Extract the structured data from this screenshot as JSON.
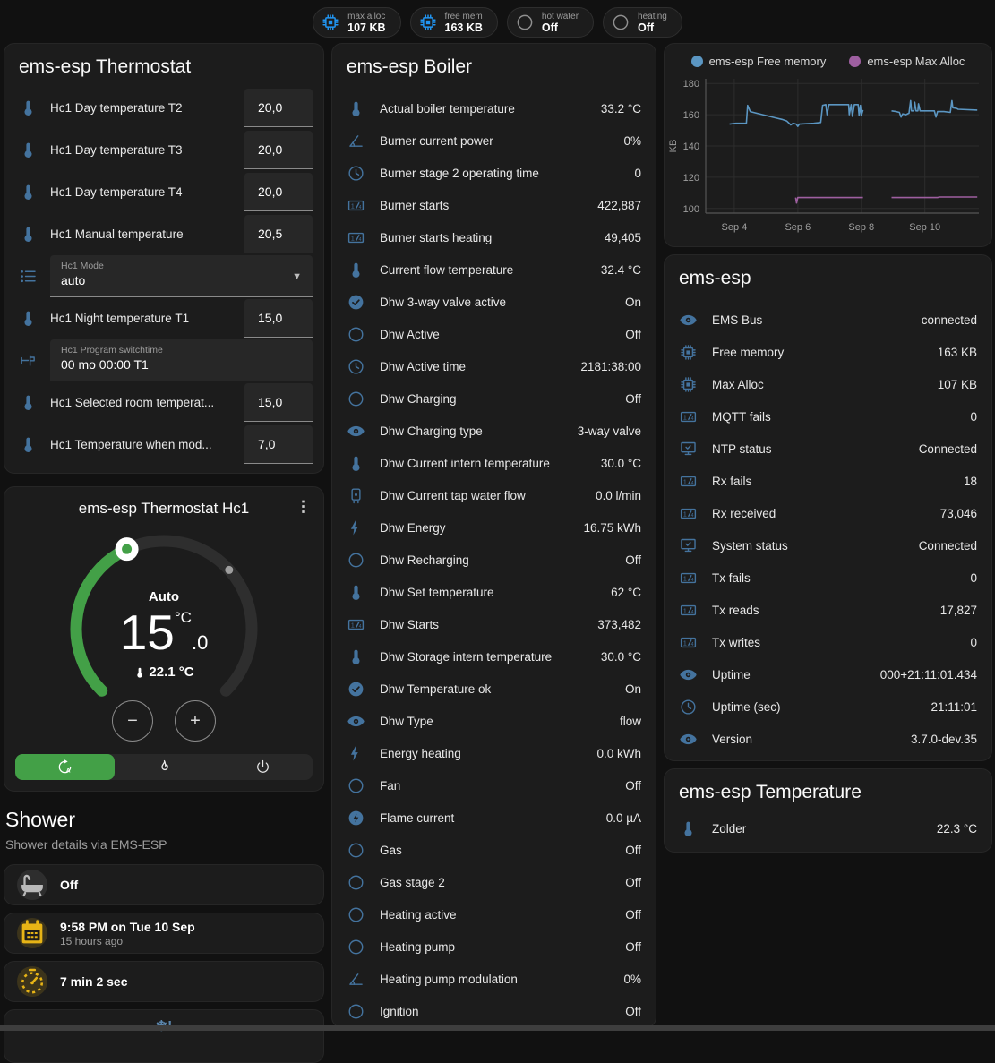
{
  "colors": {
    "icon_blue": "#44739e",
    "badge_blue": "#2196f3",
    "green": "#43a047",
    "amber": "#e7b416"
  },
  "badges": [
    {
      "label": "max alloc",
      "value": "107 KB",
      "icon": "chip-icon",
      "icon_color": "#2196f3"
    },
    {
      "label": "free mem",
      "value": "163 KB",
      "icon": "chip-icon",
      "icon_color": "#2196f3"
    },
    {
      "label": "hot water",
      "value": "Off",
      "icon": "circle-icon",
      "icon_color": "#8f8f8f"
    },
    {
      "label": "heating",
      "value": "Off",
      "icon": "circle-icon",
      "icon_color": "#8f8f8f"
    }
  ],
  "thermostat": {
    "title": "ems-esp Thermostat",
    "rows": [
      {
        "type": "number",
        "icon": "thermometer-icon",
        "label": "Hc1 Day temperature T2",
        "value": "20,0"
      },
      {
        "type": "number",
        "icon": "thermometer-icon",
        "label": "Hc1 Day temperature T3",
        "value": "20,0"
      },
      {
        "type": "number",
        "icon": "thermometer-icon",
        "label": "Hc1 Day temperature T4",
        "value": "20,0"
      },
      {
        "type": "number",
        "icon": "thermometer-icon",
        "label": "Hc1 Manual temperature",
        "value": "20,5"
      },
      {
        "type": "select",
        "icon": "list-icon",
        "label": "Hc1 Mode",
        "value": "auto"
      },
      {
        "type": "number",
        "icon": "thermometer-icon",
        "label": "Hc1 Night temperature T1",
        "value": "15,0"
      },
      {
        "type": "text",
        "icon": "switchtime-icon",
        "label": "Hc1 Program switchtime",
        "value": "00 mo 00:00 T1"
      },
      {
        "type": "number",
        "icon": "thermometer-icon",
        "label": "Hc1 Selected room temperat...",
        "value": "15,0"
      },
      {
        "type": "number",
        "icon": "thermometer-icon",
        "label": "Hc1 Temperature when mod...",
        "value": "7,0"
      }
    ]
  },
  "dial": {
    "title": "ems-esp Thermostat Hc1",
    "menu": "⋮",
    "mode": "Auto",
    "target_int": "15",
    "target_unit": "°C",
    "target_decimal": ".0",
    "current": "22.1 °C",
    "minus": "−",
    "plus": "+",
    "modes": [
      {
        "icon": "auto-icon",
        "active": true
      },
      {
        "icon": "fire-icon",
        "active": false
      },
      {
        "icon": "power-icon",
        "active": false
      }
    ]
  },
  "shower": {
    "title": "Shower",
    "subtitle": "Shower details via EMS-ESP",
    "items": [
      {
        "icon": "bathtub-icon",
        "icon_color": "#b9b9b9",
        "icon_bg": "#2e2e2e",
        "primary": "Off"
      },
      {
        "icon": "calendar-icon",
        "icon_color": "#e7b416",
        "icon_bg": "rgba(231,180,22,0.16)",
        "primary": "9:58 PM on Tue 10 Sep",
        "secondary": "15 hours ago"
      },
      {
        "icon": "timer-icon",
        "icon_color": "#e7b416",
        "icon_bg": "rgba(231,180,22,0.16)",
        "primary": "7 min 2 sec"
      }
    ],
    "snowflake_glyph": "❄!"
  },
  "boiler": {
    "title": "ems-esp Boiler",
    "rows": [
      {
        "icon": "thermometer-icon",
        "label": "Actual boiler temperature",
        "value": "33.2 °C"
      },
      {
        "icon": "angle-icon",
        "label": "Burner current power",
        "value": "0%"
      },
      {
        "icon": "clock-icon",
        "label": "Burner stage 2 operating time",
        "value": "0"
      },
      {
        "icon": "counter-icon",
        "label": "Burner starts",
        "value": "422,887"
      },
      {
        "icon": "counter-icon",
        "label": "Burner starts heating",
        "value": "49,405"
      },
      {
        "icon": "thermometer-icon",
        "label": "Current flow temperature",
        "value": "32.4 °C"
      },
      {
        "icon": "check-circle-icon",
        "label": "Dhw 3-way valve active",
        "value": "On"
      },
      {
        "icon": "circle-icon",
        "label": "Dhw Active",
        "value": "Off"
      },
      {
        "icon": "clock-icon",
        "label": "Dhw Active time",
        "value": "2181:38:00"
      },
      {
        "icon": "circle-icon",
        "label": "Dhw Charging",
        "value": "Off"
      },
      {
        "icon": "eye-icon",
        "label": "Dhw Charging type",
        "value": "3-way valve"
      },
      {
        "icon": "thermometer-icon",
        "label": "Dhw Current intern temperature",
        "value": "30.0 °C"
      },
      {
        "icon": "water-heater-icon",
        "label": "Dhw Current tap water flow",
        "value": "0.0 l/min"
      },
      {
        "icon": "flash-icon",
        "label": "Dhw Energy",
        "value": "16.75 kWh"
      },
      {
        "icon": "circle-icon",
        "label": "Dhw Recharging",
        "value": "Off"
      },
      {
        "icon": "thermometer-icon",
        "label": "Dhw Set temperature",
        "value": "62 °C"
      },
      {
        "icon": "counter-icon",
        "label": "Dhw Starts",
        "value": "373,482"
      },
      {
        "icon": "thermometer-icon",
        "label": "Dhw Storage intern temperature",
        "value": "30.0 °C"
      },
      {
        "icon": "check-circle-icon",
        "label": "Dhw Temperature ok",
        "value": "On"
      },
      {
        "icon": "eye-icon",
        "label": "Dhw Type",
        "value": "flow"
      },
      {
        "icon": "flash-icon",
        "label": "Energy heating",
        "value": "0.0 kWh"
      },
      {
        "icon": "circle-icon",
        "label": "Fan",
        "value": "Off"
      },
      {
        "icon": "flash-circle-icon",
        "label": "Flame current",
        "value": "0.0 µA"
      },
      {
        "icon": "circle-icon",
        "label": "Gas",
        "value": "Off"
      },
      {
        "icon": "circle-icon",
        "label": "Gas stage 2",
        "value": "Off"
      },
      {
        "icon": "circle-icon",
        "label": "Heating active",
        "value": "Off"
      },
      {
        "icon": "circle-icon",
        "label": "Heating pump",
        "value": "Off"
      },
      {
        "icon": "angle-icon",
        "label": "Heating pump modulation",
        "value": "0%"
      },
      {
        "icon": "circle-icon",
        "label": "Ignition",
        "value": "Off"
      }
    ]
  },
  "emsesp": {
    "title": "ems-esp",
    "rows": [
      {
        "icon": "eye-icon",
        "label": "EMS Bus",
        "value": "connected"
      },
      {
        "icon": "chip-icon",
        "label": "Free memory",
        "value": "163 KB"
      },
      {
        "icon": "chip-icon",
        "label": "Max Alloc",
        "value": "107 KB"
      },
      {
        "icon": "counter-icon",
        "label": "MQTT fails",
        "value": "0"
      },
      {
        "icon": "monitor-check-icon",
        "label": "NTP status",
        "value": "Connected"
      },
      {
        "icon": "counter-icon",
        "label": "Rx fails",
        "value": "18"
      },
      {
        "icon": "counter-icon",
        "label": "Rx received",
        "value": "73,046"
      },
      {
        "icon": "monitor-check-icon",
        "label": "System status",
        "value": "Connected"
      },
      {
        "icon": "counter-icon",
        "label": "Tx fails",
        "value": "0"
      },
      {
        "icon": "counter-icon",
        "label": "Tx reads",
        "value": "17,827"
      },
      {
        "icon": "counter-icon",
        "label": "Tx writes",
        "value": "0"
      },
      {
        "icon": "eye-icon",
        "label": "Uptime",
        "value": "000+21:11:01.434"
      },
      {
        "icon": "clock-icon",
        "label": "Uptime (sec)",
        "value": "21:11:01"
      },
      {
        "icon": "eye-icon",
        "label": "Version",
        "value": "3.7.0-dev.35"
      }
    ]
  },
  "temperature": {
    "title": "ems-esp Temperature",
    "rows": [
      {
        "icon": "thermometer-icon",
        "label": "Zolder",
        "value": "22.3 °C"
      }
    ]
  },
  "chart_data": {
    "type": "line",
    "title": "",
    "ylabel": "KB",
    "yticks": [
      100,
      120,
      140,
      160,
      180
    ],
    "ylim": [
      97,
      183
    ],
    "xlim": [
      -0.9,
      7.7
    ],
    "xtick_positions": [
      0,
      2,
      4,
      6
    ],
    "xtick_labels": [
      "Sep 4",
      "Sep 6",
      "Sep 8",
      "Sep 10"
    ],
    "grid": true,
    "legend_position": "top",
    "series": [
      {
        "name": "ems-esp Free memory",
        "color": "#5b96c2",
        "segments": [
          [
            [
              -0.15,
              154
            ],
            [
              0.05,
              154.5
            ],
            [
              0.38,
              154.5
            ],
            [
              0.42,
              166
            ],
            [
              0.5,
              162
            ],
            [
              0.7,
              161
            ],
            [
              0.9,
              160
            ],
            [
              1.1,
              159
            ],
            [
              1.3,
              158
            ],
            [
              1.5,
              157
            ],
            [
              1.65,
              156
            ],
            [
              1.7,
              155
            ],
            [
              1.78,
              153.5
            ],
            [
              1.85,
              154.5
            ],
            [
              1.95,
              154
            ],
            [
              2.0,
              152.5
            ],
            [
              2.05,
              154
            ],
            [
              2.5,
              154.5
            ],
            [
              2.72,
              155
            ],
            [
              2.78,
              166
            ],
            [
              2.88,
              166.5
            ],
            [
              2.92,
              160
            ],
            [
              2.98,
              166.5
            ],
            [
              3.6,
              166.5
            ],
            [
              3.62,
              160
            ],
            [
              3.68,
              166.5
            ],
            [
              3.72,
              159
            ],
            [
              3.78,
              166.5
            ],
            [
              3.9,
              166.5
            ],
            [
              3.93,
              159.5
            ],
            [
              3.97,
              166
            ],
            [
              4.0,
              159.5
            ],
            [
              4.05,
              163
            ]
          ],
          [
            [
              4.95,
              162.5
            ],
            [
              5.1,
              162
            ],
            [
              5.2,
              161.5
            ],
            [
              5.25,
              158.5
            ],
            [
              5.3,
              160.5
            ],
            [
              5.4,
              160
            ],
            [
              5.5,
              161
            ],
            [
              5.55,
              169
            ],
            [
              5.58,
              162.5
            ],
            [
              5.65,
              162.5
            ],
            [
              5.68,
              168
            ],
            [
              5.72,
              162.5
            ],
            [
              5.78,
              162.5
            ],
            [
              5.8,
              167
            ],
            [
              5.85,
              162.5
            ],
            [
              6.0,
              162.5
            ],
            [
              6.3,
              162.5
            ],
            [
              6.35,
              158.5
            ],
            [
              6.4,
              162
            ],
            [
              6.6,
              162
            ],
            [
              6.8,
              161.5
            ],
            [
              6.85,
              169
            ],
            [
              6.88,
              164.5
            ],
            [
              7.0,
              164
            ],
            [
              7.05,
              163.5
            ],
            [
              7.65,
              163
            ]
          ]
        ]
      },
      {
        "name": "ems-esp Max Alloc",
        "color": "#9e5fa0",
        "segments": [
          [
            [
              1.93,
              107
            ],
            [
              1.96,
              103.5
            ],
            [
              2.0,
              107
            ],
            [
              4.05,
              107
            ]
          ],
          [
            [
              4.95,
              107
            ],
            [
              6.4,
              107
            ],
            [
              6.45,
              107.3
            ],
            [
              7.65,
              107.3
            ]
          ]
        ]
      }
    ]
  }
}
